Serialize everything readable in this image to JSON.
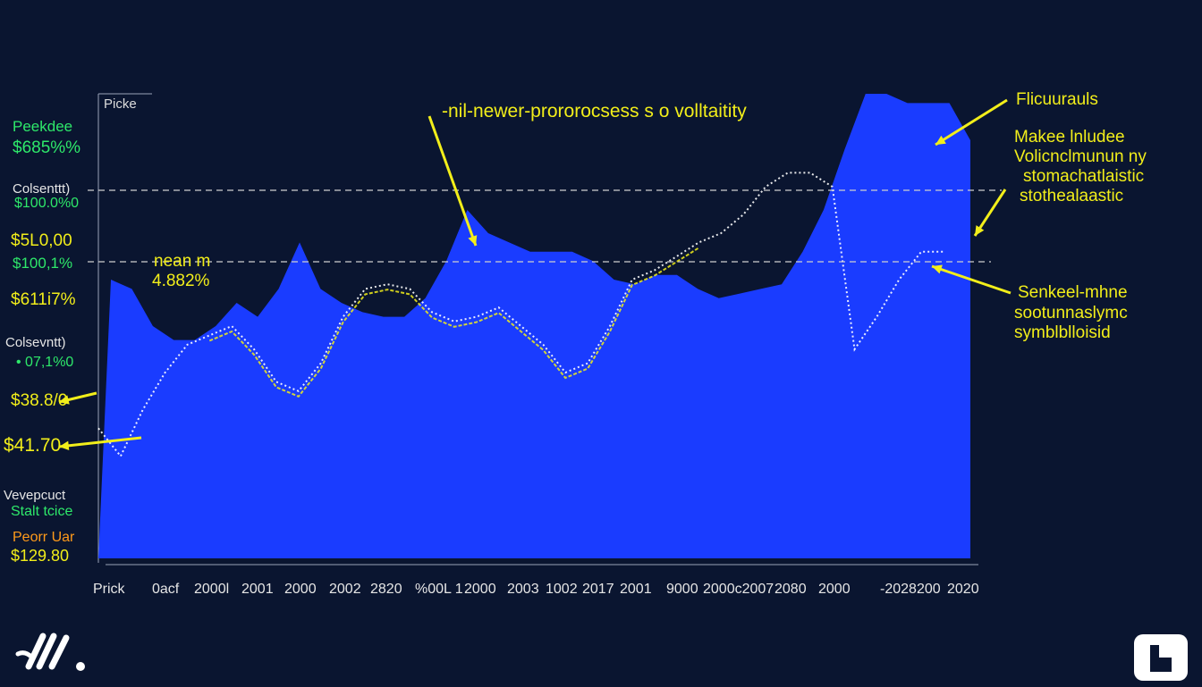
{
  "chart_data": {
    "type": "area",
    "title": "-nil-newer-prororocsess s o volltaitity",
    "corner_label": "Picke",
    "x_tick_labels": [
      "Prick",
      "0acf",
      "2000l",
      "2001",
      "2000",
      "2002",
      "2820",
      "%00L 1",
      "2000",
      "2003",
      "1002",
      "2017",
      "2001",
      "9000",
      "2000c2007",
      "2080",
      "2000",
      "-2028",
      "200",
      "2020"
    ],
    "y_labels_left": [
      {
        "line1": "Peekdee",
        "line2": "$685%%",
        "color": "green"
      },
      {
        "line1": "Colsenttt)",
        "line2": "$100.0%0",
        "color": "white-green"
      },
      {
        "line1": "$5L0,00",
        "line2": "$100,1%",
        "color": "yellow-green"
      },
      {
        "line1": "$611i7%",
        "line2": "",
        "color": "yellow"
      },
      {
        "line1": "Colsevntt)",
        "line2": "• 07,1%0",
        "color": "white-green"
      },
      {
        "line1": "$38.8/0",
        "line2": "",
        "color": "yellow"
      },
      {
        "line1": "$41.70",
        "line2": "",
        "color": "yellow"
      },
      {
        "line1": "Vevepcuct",
        "line2": "Stalt tcice",
        "color": "white-green"
      },
      {
        "line1": "Peorr Uar",
        "line2": "$129.80",
        "color": "orange-yellow"
      }
    ],
    "annotations": {
      "mean_line1": "nean m",
      "mean_line2": "4.882%",
      "right_top": "Flicuurauls",
      "right_block1_line1": "Makee lnludee",
      "right_block1_line2": "Volicnclmunun ny",
      "right_block1_line3": "stomachatlaistic",
      "right_block1_line4": "stothealaastic",
      "right_block2_line1": "Senkeel-mhne",
      "right_block2_line2": "sootunnaslymc",
      "right_block2_line3": "symblblloisid"
    },
    "series": [
      {
        "values": [
          0.6,
          0.58,
          0.5,
          0.47,
          0.47,
          0.5,
          0.55,
          0.52,
          0.58,
          0.68,
          0.58,
          0.55,
          0.53,
          0.52,
          0.52,
          0.56,
          0.64,
          0.75,
          0.7,
          0.68,
          0.66,
          0.66,
          0.66,
          0.64,
          0.6,
          0.59,
          0.61,
          0.61,
          0.58,
          0.56,
          0.57,
          0.58,
          0.59,
          0.66,
          0.75,
          0.88,
          1.0,
          1.0,
          0.98,
          0.98,
          0.98,
          0.9
        ]
      },
      {
        "values": [
          0.28,
          0.22,
          0.32,
          0.4,
          0.46,
          0.48,
          0.5,
          0.45,
          0.38,
          0.36,
          0.42,
          0.52,
          0.58,
          0.59,
          0.58,
          0.53,
          0.51,
          0.52,
          0.54,
          0.5,
          0.46,
          0.4,
          0.42,
          0.5,
          0.6,
          0.62,
          0.65,
          0.68,
          0.7,
          0.74,
          0.8,
          0.83,
          0.83,
          0.8,
          0.45,
          0.52,
          0.6,
          0.66,
          0.66
        ]
      }
    ],
    "colors": {
      "background": "#0a1530",
      "area": "#1a3cff",
      "annotation": "#f2ee1a",
      "label_green": "#2ee86a",
      "dashed": "#cfcfcf"
    }
  }
}
